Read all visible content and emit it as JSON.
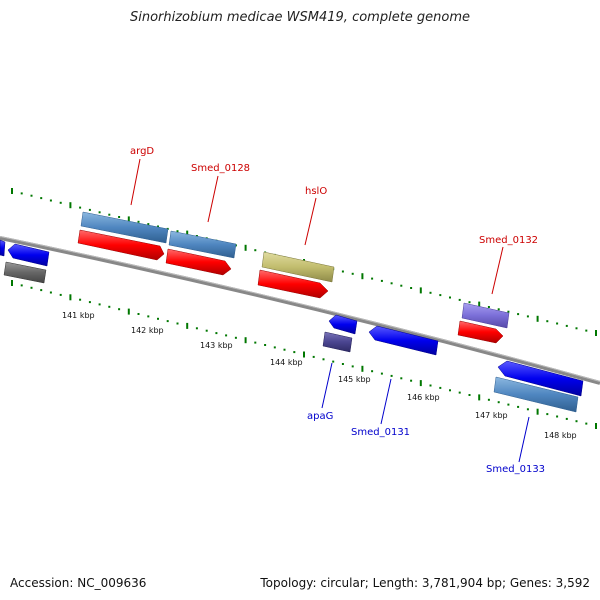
{
  "title": "Sinorhizobium medicae WSM419, complete genome",
  "footer": {
    "accession": "Accession: NC_009636",
    "summary": "Topology: circular; Length: 3,781,904 bp; Genes: 3,592"
  },
  "scale_labels": [
    "141 kbp",
    "142 kbp",
    "143 kbp",
    "144 kbp",
    "145 kbp",
    "146 kbp",
    "147 kbp",
    "148 kbp"
  ],
  "gene_labels_top": [
    "argD",
    "Smed_0128",
    "hslO",
    "Smed_0132"
  ],
  "gene_labels_bottom": [
    "apaG",
    "Smed_0131",
    "Smed_0133"
  ],
  "colors": {
    "cds_forward": "#ff0000",
    "cds_reverse": "#0000ee",
    "gene_forward": "#4f86c0",
    "ticks": "#007700",
    "backbone": "#888888",
    "label_forward": "#cc0000",
    "label_reverse": "#0000cc"
  }
}
